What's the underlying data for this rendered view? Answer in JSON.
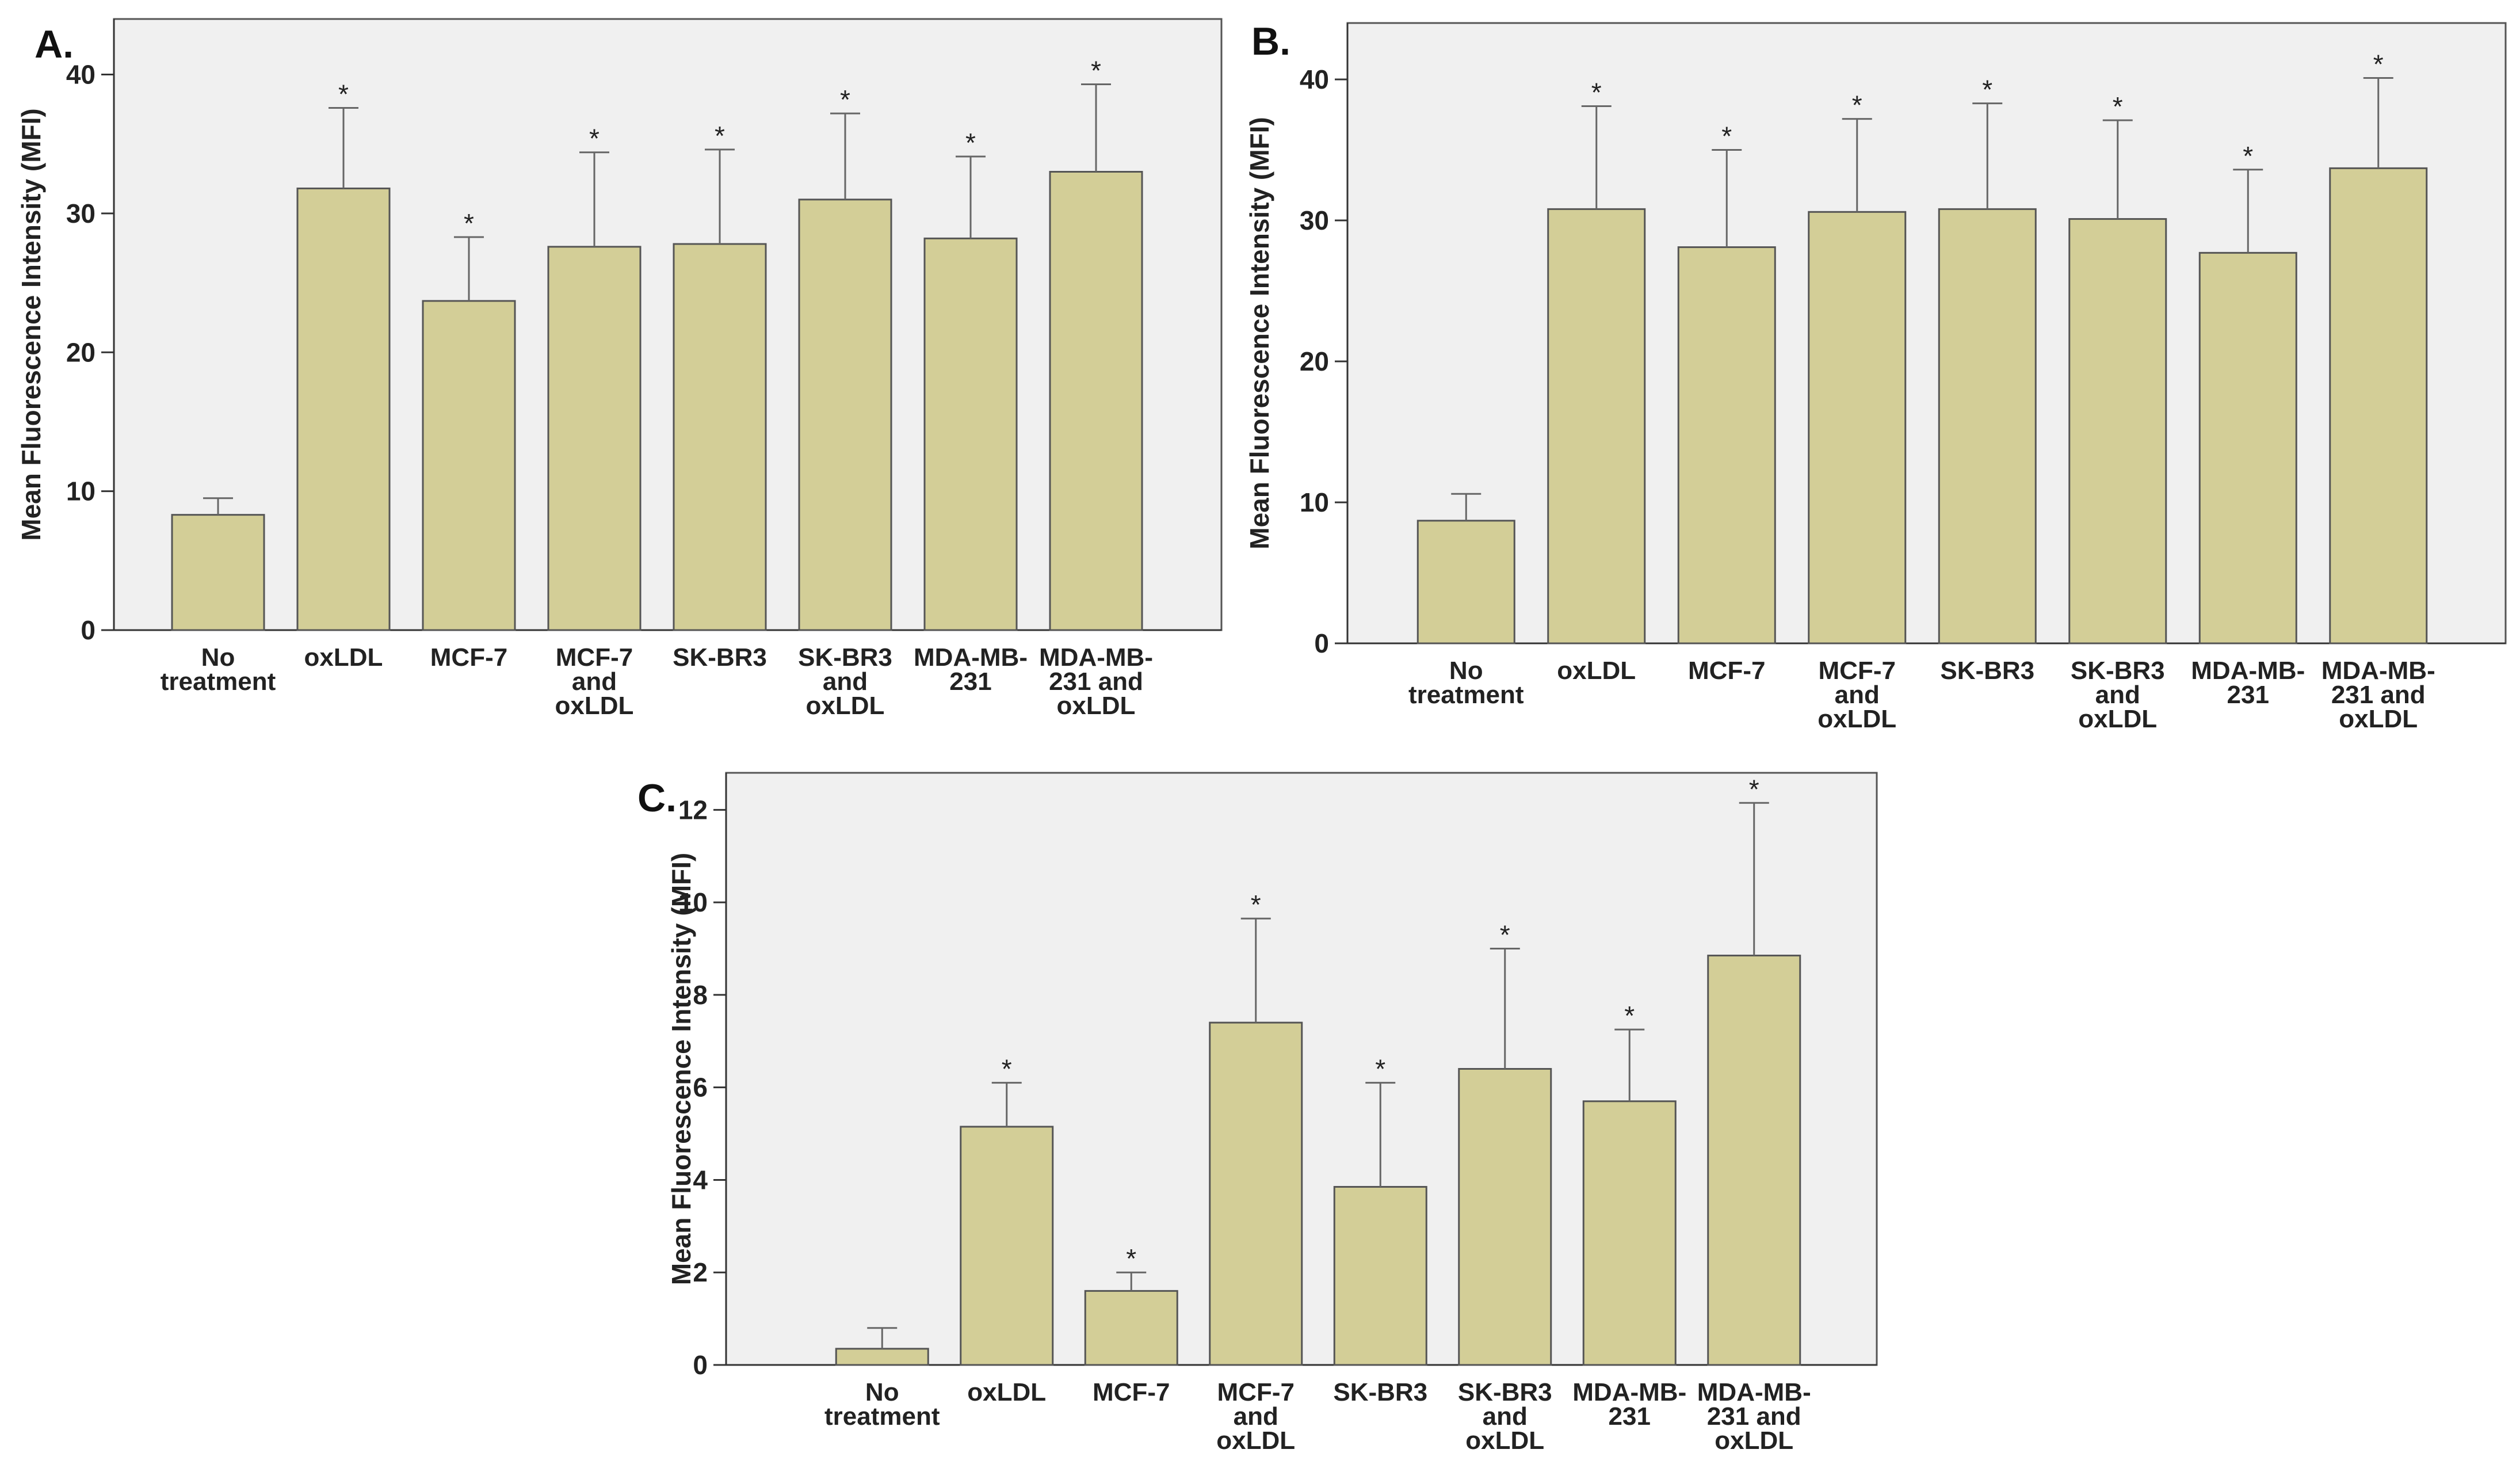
{
  "colors": {
    "bar_fill": "#d3ce97",
    "bar_stroke": "#555555",
    "plot_background": "#f0f0f0",
    "error_bar": "#666666"
  },
  "chart_data": [
    {
      "panel_label": "A.",
      "type": "bar",
      "ylabel": "Mean Fluorescence Intensity (MFI)",
      "xlabel": "",
      "ylim": [
        0,
        44
      ],
      "yticks": [
        0,
        10,
        20,
        30,
        40
      ],
      "grid": false,
      "categories": [
        [
          "No",
          "treatment"
        ],
        [
          "oxLDL"
        ],
        [
          "MCF-7"
        ],
        [
          "MCF-7",
          "and",
          "oxLDL"
        ],
        [
          "SK-BR3"
        ],
        [
          "SK-BR3",
          "and",
          "oxLDL"
        ],
        [
          "MDA-MB-",
          "231"
        ],
        [
          "MDA-MB-",
          "231 and",
          "oxLDL"
        ]
      ],
      "values": [
        8.3,
        31.8,
        23.7,
        27.6,
        27.8,
        31.0,
        28.2,
        33.0
      ],
      "error_upper": [
        9.5,
        37.6,
        28.3,
        34.4,
        34.6,
        37.2,
        34.1,
        39.3
      ],
      "significance": [
        "",
        "*",
        "*",
        "*",
        "*",
        "*",
        "*",
        "*"
      ]
    },
    {
      "panel_label": "B.",
      "type": "bar",
      "ylabel": "Mean Fluorescence Intensity (MFI)",
      "xlabel": "",
      "ylim": [
        0,
        44
      ],
      "yticks": [
        0,
        10,
        20,
        30,
        40
      ],
      "grid": false,
      "categories": [
        [
          "No",
          "treatment"
        ],
        [
          "oxLDL"
        ],
        [
          "MCF-7"
        ],
        [
          "MCF-7",
          "and",
          "oxLDL"
        ],
        [
          "SK-BR3"
        ],
        [
          "SK-BR3",
          "and",
          "oxLDL"
        ],
        [
          "MDA-MB-",
          "231"
        ],
        [
          "MDA-MB-",
          "231 and",
          "oxLDL"
        ]
      ],
      "values": [
        8.7,
        30.8,
        28.1,
        30.6,
        30.8,
        30.1,
        27.7,
        33.7
      ],
      "error_upper": [
        10.6,
        38.1,
        35.0,
        37.2,
        38.3,
        37.1,
        33.6,
        40.1
      ],
      "significance": [
        "",
        "*",
        "*",
        "*",
        "*",
        "*",
        "*",
        "*"
      ]
    },
    {
      "panel_label": "C.",
      "type": "bar",
      "ylabel": "Mean Fluorescence Intensity (MFI)",
      "xlabel": "",
      "ylim": [
        0,
        12.8
      ],
      "yticks": [
        0,
        2,
        4,
        6,
        8,
        10,
        12
      ],
      "grid": false,
      "categories": [
        [
          "No",
          "treatment"
        ],
        [
          "oxLDL"
        ],
        [
          "MCF-7"
        ],
        [
          "MCF-7",
          "and",
          "oxLDL"
        ],
        [
          "SK-BR3"
        ],
        [
          "SK-BR3",
          "and",
          "oxLDL"
        ],
        [
          "MDA-MB-",
          "231"
        ],
        [
          "MDA-MB-",
          "231 and",
          "oxLDL"
        ]
      ],
      "values": [
        0.35,
        5.15,
        1.6,
        7.4,
        3.85,
        6.4,
        5.7,
        8.85
      ],
      "error_upper": [
        0.8,
        6.1,
        2.0,
        9.65,
        6.1,
        9.0,
        7.25,
        12.15
      ],
      "significance": [
        "",
        "*",
        "*",
        "*",
        "*",
        "*",
        "*",
        "*"
      ]
    }
  ]
}
